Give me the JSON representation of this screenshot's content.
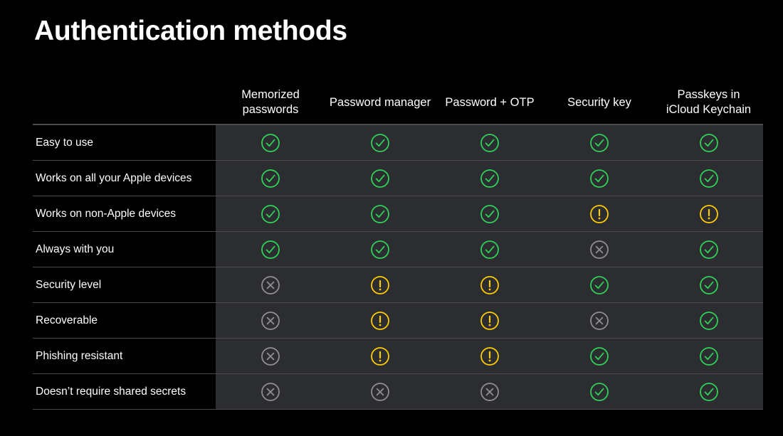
{
  "title": "Authentication methods",
  "colors": {
    "background": "#000000",
    "cell_background": "#2b2d30",
    "divider": "#4a4a4d",
    "yes": "#30d158",
    "partial": "#ffcc00",
    "no": "#8e8e93"
  },
  "columns": [
    {
      "key": "memorized",
      "label_lines": [
        "Memorized",
        "passwords"
      ]
    },
    {
      "key": "manager",
      "label_lines": [
        "Password manager"
      ]
    },
    {
      "key": "otp",
      "label_lines": [
        "Password + OTP"
      ]
    },
    {
      "key": "security_key",
      "label_lines": [
        "Security key"
      ]
    },
    {
      "key": "passkeys",
      "label_lines": [
        "Passkeys in",
        "iCloud Keychain"
      ]
    }
  ],
  "rows": [
    {
      "label": "Easy to use",
      "values": [
        "check-icon",
        "check-icon",
        "check-icon",
        "check-icon",
        "check-icon"
      ]
    },
    {
      "label": "Works on all your Apple devices",
      "values": [
        "check-icon",
        "check-icon",
        "check-icon",
        "check-icon",
        "check-icon"
      ]
    },
    {
      "label": "Works on non-Apple devices",
      "values": [
        "check-icon",
        "check-icon",
        "check-icon",
        "warning-icon",
        "warning-icon"
      ]
    },
    {
      "label": "Always with you",
      "values": [
        "check-icon",
        "check-icon",
        "check-icon",
        "cross-icon",
        "check-icon"
      ]
    },
    {
      "label": "Security level",
      "values": [
        "cross-icon",
        "warning-icon",
        "warning-icon",
        "check-icon",
        "check-icon"
      ]
    },
    {
      "label": "Recoverable",
      "values": [
        "cross-icon",
        "warning-icon",
        "warning-icon",
        "cross-icon",
        "check-icon"
      ]
    },
    {
      "label": "Phishing resistant",
      "values": [
        "cross-icon",
        "warning-icon",
        "warning-icon",
        "check-icon",
        "check-icon"
      ]
    },
    {
      "label": "Doesn’t require shared secrets",
      "values": [
        "cross-icon",
        "cross-icon",
        "cross-icon",
        "check-icon",
        "check-icon"
      ]
    }
  ]
}
